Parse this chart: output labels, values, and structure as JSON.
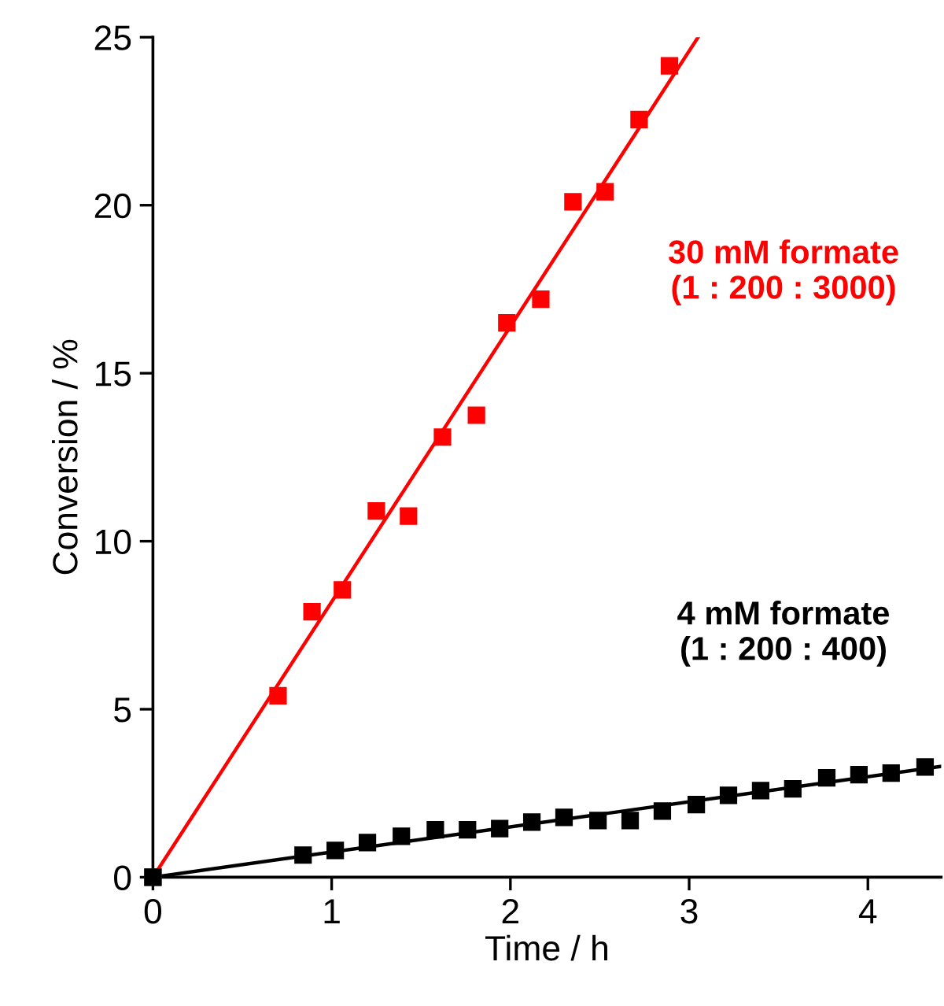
{
  "chart_data": {
    "type": "scatter",
    "xlabel": "Time / h",
    "ylabel": "Conversion / %",
    "xlim": [
      0,
      4.41
    ],
    "ylim": [
      0,
      25
    ],
    "xticks": [
      0,
      1,
      2,
      3,
      4
    ],
    "yticks": [
      0,
      5,
      10,
      15,
      20,
      25
    ],
    "marker": "square",
    "grid": false,
    "legend": false,
    "series": [
      {
        "name": "30 mM formate\n(1 : 200 : 3000)",
        "color": "#ff0000",
        "x": [
          0,
          0.7,
          0.89,
          1.06,
          1.25,
          1.43,
          1.62,
          1.81,
          1.98,
          2.17,
          2.35,
          2.53,
          2.72,
          2.89
        ],
        "values": [
          0,
          5.4,
          7.9,
          8.55,
          10.9,
          10.75,
          13.1,
          13.75,
          16.5,
          17.2,
          20.1,
          20.4,
          22.55,
          24.15
        ]
      },
      {
        "name": "4 mM formate\n(1 : 200 : 400)",
        "color": "#000000",
        "x": [
          0,
          0.84,
          1.02,
          1.2,
          1.39,
          1.58,
          1.76,
          1.94,
          2.12,
          2.3,
          2.49,
          2.67,
          2.85,
          3.04,
          3.22,
          3.4,
          3.58,
          3.77,
          3.95,
          4.13,
          4.32
        ],
        "values": [
          0,
          0.66,
          0.8,
          1.03,
          1.22,
          1.41,
          1.41,
          1.45,
          1.64,
          1.78,
          1.69,
          1.69,
          1.97,
          2.16,
          2.44,
          2.58,
          2.63,
          2.96,
          3.05,
          3.1,
          3.28
        ]
      },
      {
        "type": "line",
        "color": "#ff0000",
        "x": [
          0,
          3.05
        ],
        "values": [
          0,
          25
        ],
        "line_style": "solid",
        "marker": "none"
      },
      {
        "type": "line",
        "color": "#000000",
        "x": [
          0,
          4.41
        ],
        "values": [
          0,
          3.3
        ],
        "line_style": "solid",
        "marker": "none"
      }
    ]
  }
}
